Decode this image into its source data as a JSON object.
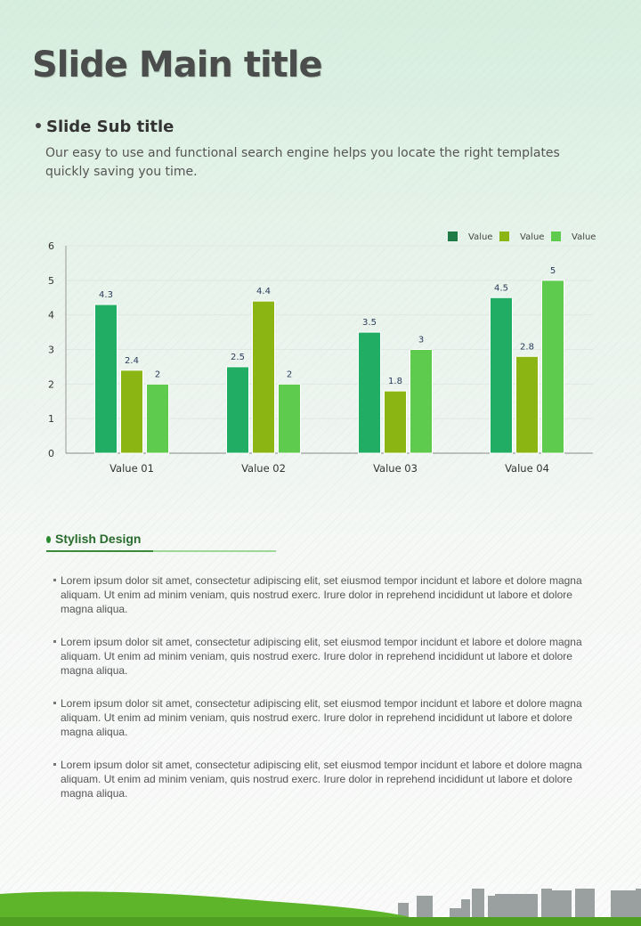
{
  "slide": {
    "title": "Slide Main title",
    "subtitle": "Slide Sub title",
    "description": "Our easy to use and functional search engine helps you locate the right  templates quickly saving you time."
  },
  "chart_data": {
    "type": "bar",
    "categories": [
      "Value 01",
      "Value 02",
      "Value 03",
      "Value 04"
    ],
    "series": [
      {
        "name": "Value",
        "color": "#21ad63",
        "legend_color": "#1e7a45",
        "values": [
          4.3,
          2.5,
          3.5,
          4.5
        ]
      },
      {
        "name": "Value",
        "color": "#8ab512",
        "legend_color": "#8ab512",
        "values": [
          2.4,
          4.4,
          1.8,
          2.8
        ]
      },
      {
        "name": "Value",
        "color": "#5ecb4e",
        "legend_color": "#5ecb4e",
        "values": [
          2,
          2,
          3,
          5
        ]
      }
    ],
    "ylim": [
      0,
      6
    ],
    "yticks": [
      0,
      1,
      2,
      3,
      4,
      5,
      6
    ],
    "grid": true,
    "legend": "top-right",
    "xlabel": "",
    "ylabel": "",
    "title": ""
  },
  "section": {
    "heading": "Stylish Design",
    "items": [
      "Lorem ipsum dolor sit amet, consectetur adipiscing elit, set eiusmod tempor incidunt et labore et dolore magna aliquam. Ut enim ad minim veniam, quis nostrud exerc. Irure dolor in reprehend incididunt ut labore et dolore magna aliqua.",
      "Lorem ipsum dolor sit amet, consectetur adipiscing elit, set eiusmod tempor incidunt et labore et dolore magna aliquam. Ut enim ad minim veniam, quis nostrud exerc. Irure dolor in reprehend incididunt ut labore et dolore magna aliqua.",
      "Lorem ipsum dolor sit amet, consectetur adipiscing elit, set eiusmod tempor incidunt et labore et dolore magna aliquam. Ut enim ad minim veniam, quis nostrud exerc. Irure dolor in reprehend incididunt ut labore et dolore magna aliqua.",
      "Lorem ipsum dolor sit amet, consectetur adipiscing elit, set eiusmod tempor incidunt et labore et dolore magna aliquam. Ut enim ad minim veniam, quis nostrud exerc. Irure dolor in reprehend incididunt ut labore et dolore magna aliqua."
    ]
  }
}
